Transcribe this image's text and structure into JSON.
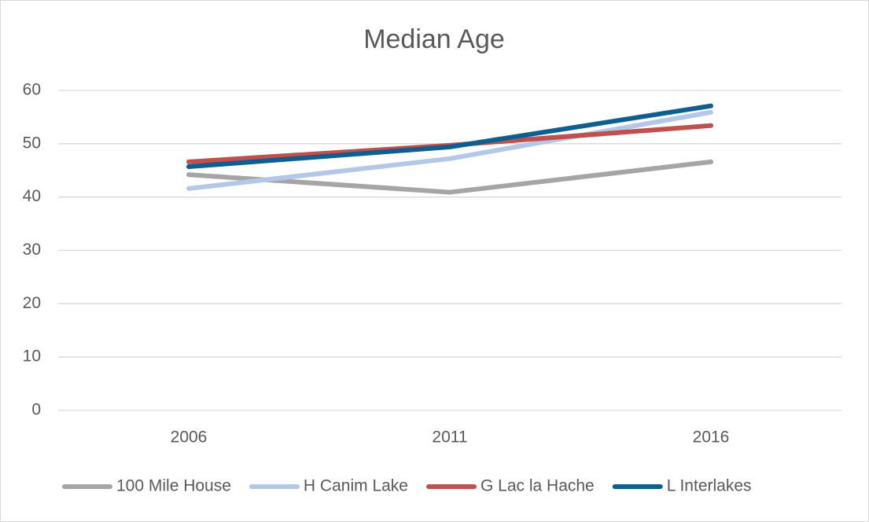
{
  "chart_data": {
    "type": "line",
    "title": "Median Age",
    "categories": [
      "2006",
      "2011",
      "2016"
    ],
    "series": [
      {
        "name": "100 Mile House",
        "color": "#a5a5a5",
        "values": [
          44.2,
          40.9,
          46.6
        ]
      },
      {
        "name": "H Canim Lake",
        "color": "#b4c7e7",
        "values": [
          41.6,
          47.2,
          55.9
        ]
      },
      {
        "name": "G Lac la Hache",
        "color": "#c0504d",
        "values": [
          46.6,
          49.7,
          53.4
        ]
      },
      {
        "name": "L Interlakes",
        "color": "#0e5f8f",
        "values": [
          45.7,
          49.4,
          57.1
        ]
      }
    ],
    "ylim": [
      0,
      60
    ],
    "yticks": [
      0,
      10,
      20,
      30,
      40,
      50,
      60
    ],
    "grid": true,
    "legend": "bottom"
  }
}
